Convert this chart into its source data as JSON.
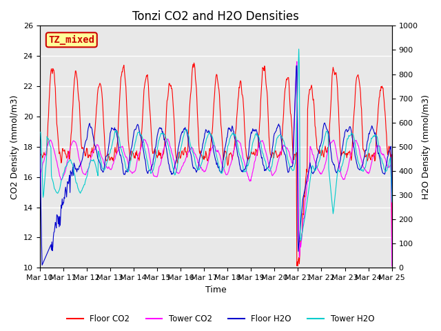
{
  "title": "Tonzi CO2 and H2O Densities",
  "xlabel": "Time",
  "ylabel_left": "CO2 Density (mmol/m3)",
  "ylabel_right": "H2O Density (mmol/m3)",
  "ylim_left": [
    10,
    26
  ],
  "ylim_right": [
    0,
    1000
  ],
  "yticks_left": [
    10,
    12,
    14,
    16,
    18,
    20,
    22,
    24,
    26
  ],
  "yticks_right": [
    0,
    100,
    200,
    300,
    400,
    500,
    600,
    700,
    800,
    900,
    1000
  ],
  "xtick_labels": [
    "Mar 10",
    "Mar 11",
    "Mar 12",
    "Mar 13",
    "Mar 14",
    "Mar 15",
    "Mar 16",
    "Mar 17",
    "Mar 18",
    "Mar 19",
    "Mar 20",
    "Mar 21",
    "Mar 22",
    "Mar 23",
    "Mar 24",
    "Mar 25"
  ],
  "annotation_text": "TZ_mixed",
  "annotation_bg": "#ffff99",
  "annotation_border": "#cc0000",
  "annotation_text_color": "#cc0000",
  "colors": {
    "floor_co2": "#ff0000",
    "tower_co2": "#ff00ff",
    "floor_h2o": "#0000cc",
    "tower_h2o": "#00cccc"
  },
  "legend_labels": [
    "Floor CO2",
    "Tower CO2",
    "Floor H2O",
    "Tower H2O"
  ],
  "background_color": "#e8e8e8",
  "grid_color": "#ffffff",
  "title_fontsize": 12,
  "axis_fontsize": 9,
  "tick_fontsize": 8,
  "n_days": 15,
  "n_per_day": 48
}
